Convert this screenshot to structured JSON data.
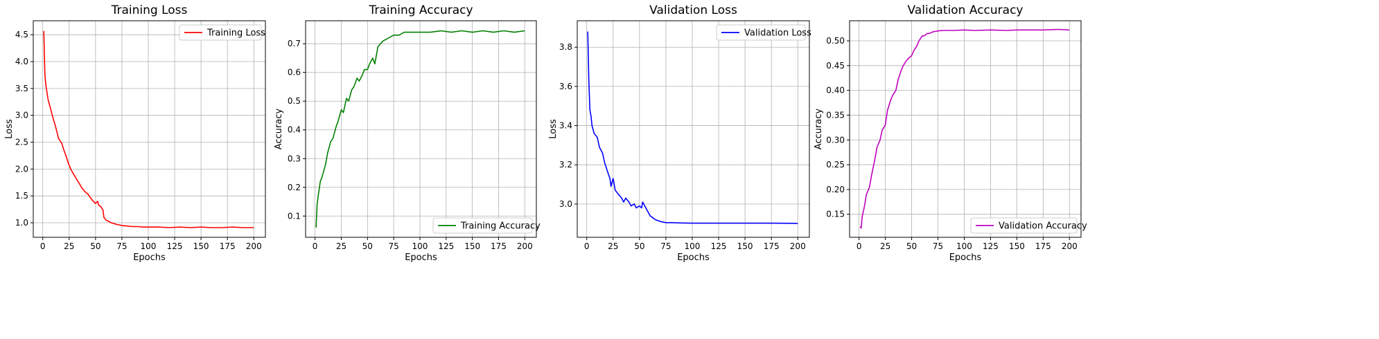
{
  "chart_data": [
    {
      "type": "line",
      "title": "Training Loss",
      "xlabel": "Epochs",
      "ylabel": "Loss",
      "xlim": [
        -9,
        211
      ],
      "ylim": [
        0.73,
        4.76
      ],
      "xticks": [
        0,
        25,
        50,
        75,
        100,
        125,
        150,
        175,
        200
      ],
      "yticks": [
        1.0,
        1.5,
        2.0,
        2.5,
        3.0,
        3.5,
        4.0,
        4.5
      ],
      "ytick_labels": [
        "1.0",
        "1.5",
        "2.0",
        "2.5",
        "3.0",
        "3.5",
        "4.0",
        "4.5"
      ],
      "grid": true,
      "legend": "upper right",
      "series": [
        {
          "name": "Training Loss",
          "color": "#ff0000",
          "x": [
            1,
            2,
            3,
            5,
            7,
            10,
            12,
            15,
            18,
            20,
            22,
            24,
            25,
            27,
            30,
            33,
            35,
            37,
            40,
            43,
            45,
            47,
            50,
            52,
            53,
            55,
            57,
            58,
            60,
            63,
            65,
            70,
            75,
            80,
            85,
            90,
            95,
            100,
            110,
            120,
            130,
            140,
            150,
            160,
            170,
            180,
            190,
            200
          ],
          "y": [
            4.57,
            3.75,
            3.55,
            3.3,
            3.15,
            2.93,
            2.8,
            2.57,
            2.48,
            2.35,
            2.25,
            2.12,
            2.07,
            1.98,
            1.88,
            1.78,
            1.72,
            1.65,
            1.58,
            1.53,
            1.47,
            1.42,
            1.36,
            1.4,
            1.33,
            1.3,
            1.24,
            1.1,
            1.05,
            1.02,
            1.0,
            0.97,
            0.95,
            0.94,
            0.93,
            0.93,
            0.92,
            0.92,
            0.92,
            0.91,
            0.92,
            0.91,
            0.92,
            0.91,
            0.91,
            0.92,
            0.91,
            0.91
          ]
        }
      ]
    },
    {
      "type": "line",
      "title": "Training Accuracy",
      "xlabel": "Epochs",
      "ylabel": "Accuracy",
      "xlim": [
        -9,
        211
      ],
      "ylim": [
        0.026,
        0.78
      ],
      "xticks": [
        0,
        25,
        50,
        75,
        100,
        125,
        150,
        175,
        200
      ],
      "yticks": [
        0.1,
        0.2,
        0.3,
        0.4,
        0.5,
        0.6,
        0.7
      ],
      "ytick_labels": [
        "0.1",
        "0.2",
        "0.3",
        "0.4",
        "0.5",
        "0.6",
        "0.7"
      ],
      "grid": true,
      "legend": "lower right",
      "series": [
        {
          "name": "Training Accuracy",
          "color": "#008000",
          "x": [
            1,
            2,
            3,
            5,
            7,
            10,
            12,
            15,
            17,
            20,
            22,
            25,
            27,
            30,
            32,
            35,
            37,
            40,
            42,
            45,
            47,
            50,
            52,
            55,
            57,
            60,
            65,
            70,
            75,
            80,
            85,
            90,
            100,
            110,
            120,
            130,
            140,
            150,
            160,
            170,
            180,
            190,
            200
          ],
          "y": [
            0.06,
            0.14,
            0.17,
            0.22,
            0.24,
            0.28,
            0.32,
            0.36,
            0.37,
            0.41,
            0.43,
            0.47,
            0.46,
            0.51,
            0.5,
            0.54,
            0.55,
            0.58,
            0.57,
            0.59,
            0.61,
            0.61,
            0.63,
            0.65,
            0.63,
            0.69,
            0.71,
            0.72,
            0.73,
            0.73,
            0.74,
            0.74,
            0.74,
            0.74,
            0.745,
            0.74,
            0.745,
            0.74,
            0.745,
            0.74,
            0.745,
            0.74,
            0.745
          ]
        }
      ]
    },
    {
      "type": "line",
      "title": "Validation Loss",
      "xlabel": "Epochs",
      "ylabel": "Loss",
      "xlim": [
        -9,
        211
      ],
      "ylim": [
        2.83,
        3.935
      ],
      "xticks": [
        0,
        25,
        50,
        75,
        100,
        125,
        150,
        175,
        200
      ],
      "yticks": [
        3.0,
        3.2,
        3.4,
        3.6,
        3.8
      ],
      "ytick_labels": [
        "3.0",
        "3.2",
        "3.4",
        "3.6",
        "3.8"
      ],
      "grid": true,
      "legend": "upper right",
      "series": [
        {
          "name": "Validation Loss",
          "color": "#0000ff",
          "x": [
            1,
            2,
            3,
            4,
            5,
            7,
            10,
            12,
            15,
            17,
            20,
            22,
            23,
            25,
            27,
            30,
            33,
            35,
            37,
            40,
            42,
            45,
            47,
            50,
            52,
            53,
            55,
            57,
            60,
            65,
            70,
            75,
            80,
            90,
            100,
            125,
            150,
            175,
            200
          ],
          "y": [
            3.88,
            3.62,
            3.48,
            3.45,
            3.4,
            3.36,
            3.34,
            3.29,
            3.26,
            3.21,
            3.16,
            3.13,
            3.09,
            3.13,
            3.07,
            3.05,
            3.03,
            3.01,
            3.03,
            3.01,
            2.99,
            3.0,
            2.98,
            2.99,
            2.98,
            3.01,
            2.99,
            2.97,
            2.94,
            2.92,
            2.91,
            2.905,
            2.905,
            2.903,
            2.902,
            2.902,
            2.902,
            2.902,
            2.901
          ]
        }
      ]
    },
    {
      "type": "line",
      "title": "Validation Accuracy",
      "xlabel": "Epochs",
      "ylabel": "Accuracy",
      "xlim": [
        -9,
        211
      ],
      "ylim": [
        0.1035,
        0.5405
      ],
      "xticks": [
        0,
        25,
        50,
        75,
        100,
        125,
        150,
        175,
        200
      ],
      "yticks": [
        0.15,
        0.2,
        0.25,
        0.3,
        0.35,
        0.4,
        0.45,
        0.5
      ],
      "ytick_labels": [
        "0.15",
        "0.20",
        "0.25",
        "0.30",
        "0.35",
        "0.40",
        "0.45",
        "0.50"
      ],
      "grid": true,
      "legend": "lower right",
      "series": [
        {
          "name": "Validation Accuracy",
          "color": "#bf00bf",
          "x": [
            1,
            2,
            3,
            5,
            7,
            10,
            12,
            15,
            17,
            20,
            22,
            25,
            27,
            30,
            32,
            35,
            37,
            40,
            42,
            45,
            47,
            50,
            52,
            55,
            57,
            60,
            62,
            65,
            67,
            70,
            75,
            80,
            90,
            100,
            110,
            125,
            140,
            150,
            160,
            175,
            190,
            200
          ],
          "y": [
            0.125,
            0.122,
            0.145,
            0.165,
            0.19,
            0.205,
            0.23,
            0.26,
            0.285,
            0.3,
            0.32,
            0.33,
            0.36,
            0.38,
            0.39,
            0.4,
            0.42,
            0.44,
            0.45,
            0.46,
            0.465,
            0.47,
            0.48,
            0.49,
            0.5,
            0.51,
            0.51,
            0.515,
            0.515,
            0.518,
            0.52,
            0.521,
            0.521,
            0.522,
            0.521,
            0.522,
            0.521,
            0.522,
            0.522,
            0.522,
            0.523,
            0.522
          ]
        }
      ]
    }
  ]
}
